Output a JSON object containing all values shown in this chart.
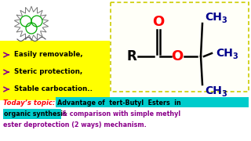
{
  "bg_color": "#ffffff",
  "bullet_points": [
    "Easily removable,",
    "Steric protection,",
    "Stable carbocation.."
  ],
  "bullet_bg": "#ffff00",
  "today_label": "Today’s topic:",
  "today_color": "#ff0000",
  "highlight1_color": "#000000",
  "highlight1_bg": "#00cccc",
  "rest_color": "#8b008b",
  "text_fontsize": 5.8,
  "arrow_color": "#8b008b",
  "ch3_color": "#00008b",
  "bond_color": "#000000",
  "o_color": "#ff0000",
  "r_color": "#000000",
  "box_edge_color": "#cccc00"
}
